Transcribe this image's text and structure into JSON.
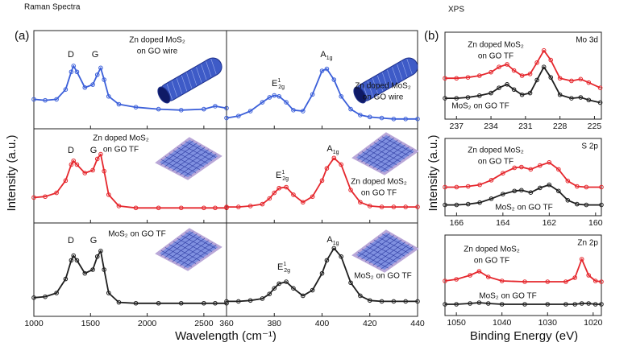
{
  "chart_data": [
    {
      "type": "line",
      "panel_label": "(a)",
      "title": "Raman Spectra",
      "ylabel": "Intensity (a.u.)",
      "x": [
        1000,
        1100,
        1200,
        1280,
        1330,
        1350,
        1380,
        1450,
        1520,
        1560,
        1590,
        1620,
        1660,
        1750,
        1900,
        2100,
        2300,
        2500,
        2600,
        2700
      ],
      "xlim": [
        1000,
        2700
      ],
      "ylim": [
        0,
        1
      ],
      "series": [
        {
          "color": "#3b5fd9",
          "values": [
            0.3,
            0.29,
            0.3,
            0.4,
            0.58,
            0.64,
            0.58,
            0.42,
            0.45,
            0.55,
            0.62,
            0.5,
            0.33,
            0.25,
            0.22,
            0.2,
            0.19,
            0.2,
            0.23,
            0.21
          ]
        }
      ],
      "annotations": [
        {
          "text": "D"
        },
        {
          "text": "G"
        },
        {
          "lines": [
            "Zn doped MoS₂",
            "on GO wire"
          ]
        }
      ]
    },
    {
      "type": "line",
      "x": [
        1000,
        1100,
        1200,
        1280,
        1330,
        1350,
        1380,
        1450,
        1520,
        1560,
        1590,
        1620,
        1660,
        1750,
        1900,
        2100,
        2300,
        2500,
        2600,
        2700
      ],
      "xlim": [
        1000,
        2700
      ],
      "ylim": [
        0,
        1
      ],
      "series": [
        {
          "color": "#e5272d",
          "values": [
            0.27,
            0.28,
            0.32,
            0.45,
            0.62,
            0.66,
            0.62,
            0.53,
            0.56,
            0.68,
            0.73,
            0.55,
            0.3,
            0.18,
            0.16,
            0.16,
            0.16,
            0.16,
            0.16,
            0.16
          ]
        }
      ],
      "annotations": [
        {
          "text": "D"
        },
        {
          "text": "G"
        },
        {
          "lines": [
            "Zn doped MoS₂",
            "on GO TF"
          ]
        }
      ]
    },
    {
      "type": "line",
      "xlabel": "Wavelength (cm⁻¹)",
      "x": [
        1000,
        1100,
        1200,
        1280,
        1330,
        1350,
        1380,
        1450,
        1520,
        1560,
        1590,
        1620,
        1660,
        1750,
        1900,
        2100,
        2300,
        2500,
        2600,
        2700
      ],
      "xlim": [
        1000,
        2700
      ],
      "xticks": [
        1000,
        1500,
        2000,
        2500
      ],
      "ylim": [
        0,
        1
      ],
      "series": [
        {
          "color": "#1e1e1e",
          "values": [
            0.2,
            0.21,
            0.25,
            0.4,
            0.6,
            0.65,
            0.6,
            0.46,
            0.5,
            0.64,
            0.7,
            0.5,
            0.25,
            0.15,
            0.14,
            0.14,
            0.14,
            0.14,
            0.14,
            0.14
          ]
        }
      ],
      "annotations": [
        {
          "text": "D"
        },
        {
          "text": "G"
        },
        {
          "lines": [
            "MoS₂ on GO TF"
          ]
        }
      ]
    },
    {
      "type": "line",
      "x": [
        360,
        365,
        370,
        375,
        378,
        380,
        382,
        385,
        388,
        392,
        396,
        400,
        402,
        405,
        408,
        412,
        416,
        420,
        425,
        430,
        435,
        440
      ],
      "xlim": [
        360,
        440
      ],
      "ylim": [
        0,
        1
      ],
      "series": [
        {
          "color": "#3b5fd9",
          "values": [
            0.11,
            0.13,
            0.18,
            0.27,
            0.32,
            0.34,
            0.33,
            0.27,
            0.19,
            0.18,
            0.35,
            0.59,
            0.61,
            0.5,
            0.33,
            0.2,
            0.14,
            0.12,
            0.11,
            0.1,
            0.1,
            0.1
          ]
        }
      ],
      "annotations": [
        {
          "base": "A",
          "sub": "1g"
        },
        {
          "base": "E",
          "sup": "1",
          "sub": "2g"
        },
        {
          "lines": [
            "Zn doped MoS₂",
            "on GO wire"
          ]
        }
      ]
    },
    {
      "type": "line",
      "x": [
        360,
        365,
        370,
        375,
        378,
        380,
        382,
        385,
        388,
        392,
        396,
        400,
        402,
        405,
        408,
        412,
        416,
        420,
        425,
        430,
        435,
        440
      ],
      "xlim": [
        360,
        440
      ],
      "ylim": [
        0,
        1
      ],
      "series": [
        {
          "color": "#e5272d",
          "values": [
            0.17,
            0.17,
            0.18,
            0.2,
            0.26,
            0.32,
            0.37,
            0.38,
            0.3,
            0.22,
            0.28,
            0.45,
            0.58,
            0.69,
            0.62,
            0.35,
            0.22,
            0.18,
            0.17,
            0.17,
            0.17,
            0.17
          ]
        }
      ],
      "annotations": [
        {
          "base": "A",
          "sub": "1g"
        },
        {
          "base": "E",
          "sup": "1",
          "sub": "2g"
        },
        {
          "lines": [
            "Zn doped MoS₂",
            "on GO TF"
          ]
        }
      ]
    },
    {
      "type": "line",
      "x": [
        360,
        365,
        370,
        375,
        378,
        380,
        382,
        385,
        388,
        392,
        396,
        400,
        402,
        405,
        408,
        412,
        416,
        420,
        425,
        430,
        435,
        440
      ],
      "xlim": [
        360,
        440
      ],
      "xticks": [
        360,
        380,
        400,
        420,
        440
      ],
      "ylim": [
        0,
        1
      ],
      "series": [
        {
          "color": "#1e1e1e",
          "values": [
            0.16,
            0.16,
            0.17,
            0.19,
            0.24,
            0.3,
            0.35,
            0.37,
            0.3,
            0.22,
            0.28,
            0.46,
            0.6,
            0.73,
            0.64,
            0.36,
            0.22,
            0.17,
            0.16,
            0.16,
            0.16,
            0.16
          ]
        }
      ],
      "annotations": [
        {
          "base": "A",
          "sub": "1g"
        },
        {
          "base": "E",
          "sup": "1",
          "sub": "2g"
        },
        {
          "lines": [
            "MoS₂ on GO TF"
          ]
        }
      ]
    },
    {
      "type": "line",
      "panel_label": "(b)",
      "title": "XPS",
      "ylabel": "Intensity (a.u.)",
      "label": "Mo 3d",
      "x": [
        238,
        237,
        236,
        235,
        234,
        233.3,
        232.6,
        232,
        231.3,
        230.6,
        230,
        229.4,
        228.8,
        228,
        227,
        226.2,
        225.5,
        224.5
      ],
      "xlim": [
        238,
        224.4
      ],
      "xticks": [
        237,
        234,
        231,
        228,
        225
      ],
      "ylim": [
        0,
        1
      ],
      "series": [
        {
          "color": "#e5272d",
          "values": [
            0.47,
            0.47,
            0.48,
            0.5,
            0.54,
            0.6,
            0.63,
            0.56,
            0.5,
            0.52,
            0.65,
            0.79,
            0.68,
            0.47,
            0.44,
            0.46,
            0.42,
            0.36
          ]
        },
        {
          "color": "#1e1e1e",
          "values": [
            0.24,
            0.24,
            0.25,
            0.27,
            0.3,
            0.36,
            0.4,
            0.34,
            0.28,
            0.3,
            0.45,
            0.6,
            0.48,
            0.28,
            0.24,
            0.25,
            0.22,
            0.19
          ]
        }
      ],
      "annotations": [
        {
          "lines": [
            "Zn doped MoS₂",
            "on GO TF"
          ]
        },
        {
          "lines": [
            "MoS₂ on GO TF"
          ]
        }
      ]
    },
    {
      "type": "line",
      "label": "S 2p",
      "x": [
        166.5,
        166,
        165.5,
        165,
        164.5,
        164,
        163.5,
        163.2,
        162.8,
        162.4,
        162,
        161.6,
        161.2,
        160.8,
        160.4,
        159.75
      ],
      "xlim": [
        166.5,
        159.75
      ],
      "xticks": [
        166,
        164,
        162,
        160
      ],
      "ylim": [
        0,
        1
      ],
      "series": [
        {
          "color": "#e5272d",
          "values": [
            0.37,
            0.37,
            0.38,
            0.4,
            0.46,
            0.55,
            0.62,
            0.63,
            0.6,
            0.65,
            0.69,
            0.6,
            0.45,
            0.38,
            0.37,
            0.37
          ]
        },
        {
          "color": "#1e1e1e",
          "values": [
            0.14,
            0.14,
            0.15,
            0.17,
            0.22,
            0.28,
            0.32,
            0.33,
            0.3,
            0.36,
            0.4,
            0.32,
            0.2,
            0.15,
            0.14,
            0.14
          ]
        }
      ],
      "annotations": [
        {
          "lines": [
            "Zn doped MoS₂",
            "on GO TF"
          ]
        },
        {
          "lines": [
            "MoS₂ on GO TF"
          ]
        }
      ]
    },
    {
      "type": "line",
      "label": "Zn 2p",
      "xlabel": "Binding Energy (eV)",
      "x": [
        1052.5,
        1050,
        1047,
        1045,
        1043,
        1040,
        1035,
        1030,
        1026,
        1024,
        1022.5,
        1021,
        1019.5,
        1018.2
      ],
      "xlim": [
        1052.5,
        1018.2
      ],
      "xticks": [
        1050,
        1040,
        1030,
        1020
      ],
      "ylim": [
        0,
        1
      ],
      "series": [
        {
          "color": "#e5272d",
          "values": [
            0.43,
            0.45,
            0.5,
            0.55,
            0.48,
            0.43,
            0.42,
            0.42,
            0.42,
            0.47,
            0.7,
            0.5,
            0.43,
            0.42
          ]
        },
        {
          "color": "#1e1e1e",
          "values": [
            0.14,
            0.14,
            0.15,
            0.16,
            0.15,
            0.14,
            0.14,
            0.14,
            0.14,
            0.14,
            0.15,
            0.15,
            0.14,
            0.14
          ]
        }
      ],
      "annotations": [
        {
          "lines": [
            "Zn doped MoS₂",
            "on GO TF"
          ]
        },
        {
          "lines": [
            "MoS₂ on GO TF"
          ]
        }
      ]
    }
  ]
}
